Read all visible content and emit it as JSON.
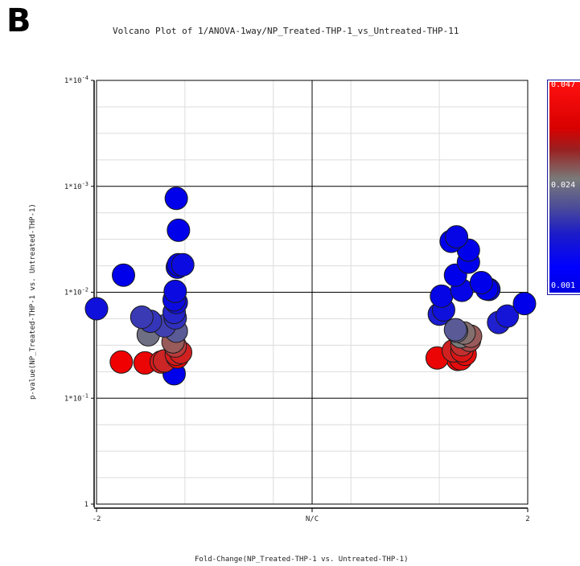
{
  "panel_letter": "B",
  "chart_data": {
    "type": "scatter",
    "title": "Volcano Plot of 1/ANOVA-1way/NP_Treated-THP-1_vs_Untreated-THP-11",
    "xlabel": "Fold-Change(NP_Treated-THP-1 vs. Untreated-THP-1)",
    "ylabel": "p-value(NP_Treated-THP-1 vs. Untreated-THP-1)",
    "x_ticks": [
      "-2",
      "N/C",
      "2"
    ],
    "y_ticks": [
      "1*10^-4",
      "1*10^-3",
      "1*10^-2",
      "1*10^-1",
      "1"
    ],
    "y_scale": "log",
    "xlim": [
      -2,
      2
    ],
    "ylim": [
      0.0001,
      1
    ],
    "grid": true,
    "color_legend": {
      "labels": [
        "0.047",
        "0.024",
        "0.001"
      ],
      "high_color": "#ff0000",
      "mid_color": "#7a7a7a",
      "low_color": "#0000ff"
    },
    "points": [
      {
        "x": -1.75,
        "p": 0.0069,
        "c": 0.001
      },
      {
        "x": -2.0,
        "p": 0.0143,
        "c": 0.004
      },
      {
        "x": -1.77,
        "p": 0.0455,
        "c": 0.047
      },
      {
        "x": -1.58,
        "p": 0.0172,
        "c": 0.012
      },
      {
        "x": -1.5,
        "p": 0.0188,
        "c": 0.011
      },
      {
        "x": -1.37,
        "p": 0.0208,
        "c": 0.013
      },
      {
        "x": -1.52,
        "p": 0.0252,
        "c": 0.022
      },
      {
        "x": -1.55,
        "p": 0.0465,
        "c": 0.046
      },
      {
        "x": -1.4,
        "p": 0.0455,
        "c": 0.042
      },
      {
        "x": -1.37,
        "p": 0.0445,
        "c": 0.04
      },
      {
        "x": -1.28,
        "p": 0.0588,
        "c": 0.001
      },
      {
        "x": -1.24,
        "p": 0.0055,
        "c": 0.002
      },
      {
        "x": -1.24,
        "p": 0.0026,
        "c": 0.001
      },
      {
        "x": -1.26,
        "p": 0.0013,
        "c": 0.001
      },
      {
        "x": -1.2,
        "p": 0.0055,
        "c": 0.003
      },
      {
        "x": -1.25,
        "p": 0.0058,
        "c": 0.002
      },
      {
        "x": -1.27,
        "p": 0.0098,
        "c": 0.003
      },
      {
        "x": -1.28,
        "p": 0.0118,
        "c": 0.003
      },
      {
        "x": -1.26,
        "p": 0.0125,
        "c": 0.004
      },
      {
        "x": -1.28,
        "p": 0.0155,
        "c": 0.008
      },
      {
        "x": -1.27,
        "p": 0.0175,
        "c": 0.01
      },
      {
        "x": -1.26,
        "p": 0.0233,
        "c": 0.018
      },
      {
        "x": -1.29,
        "p": 0.0294,
        "c": 0.03
      },
      {
        "x": -1.27,
        "p": 0.0322,
        "c": 0.036
      },
      {
        "x": -1.22,
        "p": 0.037,
        "c": 0.041
      },
      {
        "x": -1.26,
        "p": 0.0385,
        "c": 0.042
      },
      {
        "x": -1.25,
        "p": 0.0408,
        "c": 0.046
      },
      {
        "x": 1.2,
        "p": 0.0109,
        "c": 0.002
      },
      {
        "x": 1.22,
        "p": 0.0147,
        "c": 0.004
      },
      {
        "x": 1.18,
        "p": 0.0161,
        "c": 0.006
      },
      {
        "x": 1.34,
        "p": 0.003,
        "c": 0.002
      },
      {
        "x": 1.29,
        "p": 0.0033,
        "c": 0.001
      },
      {
        "x": 1.45,
        "p": 0.004,
        "c": 0.001
      },
      {
        "x": 1.45,
        "p": 0.0052,
        "c": 0.001
      },
      {
        "x": 1.33,
        "p": 0.0069,
        "c": 0.001
      },
      {
        "x": 1.39,
        "p": 0.0096,
        "c": 0.002
      },
      {
        "x": 1.57,
        "p": 0.0081,
        "c": 0.001
      },
      {
        "x": 1.62,
        "p": 0.0093,
        "c": 0.001
      },
      {
        "x": 1.64,
        "p": 0.0094,
        "c": 0.002
      },
      {
        "x": 1.97,
        "p": 0.0128,
        "c": 0.001
      },
      {
        "x": 1.81,
        "p": 0.0168,
        "c": 0.005
      },
      {
        "x": 1.73,
        "p": 0.0193,
        "c": 0.007
      },
      {
        "x": 1.33,
        "p": 0.0226,
        "c": 0.018
      },
      {
        "x": 1.34,
        "p": 0.0233,
        "c": 0.021
      },
      {
        "x": 1.38,
        "p": 0.0263,
        "c": 0.024
      },
      {
        "x": 1.41,
        "p": 0.0243,
        "c": 0.026
      },
      {
        "x": 1.47,
        "p": 0.026,
        "c": 0.03
      },
      {
        "x": 1.46,
        "p": 0.0284,
        "c": 0.033
      },
      {
        "x": 1.39,
        "p": 0.0313,
        "c": 0.038
      },
      {
        "x": 1.31,
        "p": 0.0357,
        "c": 0.041
      },
      {
        "x": 1.39,
        "p": 0.0357,
        "c": 0.043
      },
      {
        "x": 1.42,
        "p": 0.0385,
        "c": 0.045
      },
      {
        "x": 1.16,
        "p": 0.0417,
        "c": 0.046
      },
      {
        "x": 1.35,
        "p": 0.043,
        "c": 0.047
      },
      {
        "x": 1.38,
        "p": 0.0426,
        "c": 0.045
      }
    ]
  }
}
